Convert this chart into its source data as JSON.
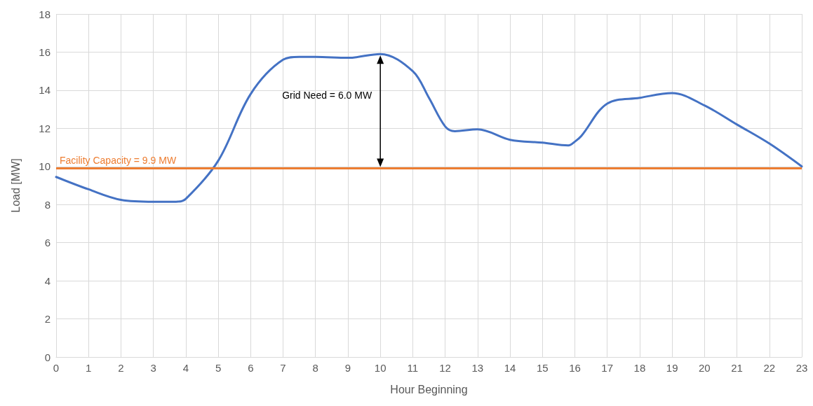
{
  "chart_data": {
    "type": "line",
    "xlabel": "Hour Beginning",
    "ylabel": "Load [MW]",
    "xlim": [
      0,
      23
    ],
    "xticks": [
      0,
      1,
      2,
      3,
      4,
      5,
      6,
      7,
      8,
      9,
      10,
      11,
      12,
      13,
      14,
      15,
      16,
      17,
      18,
      19,
      20,
      21,
      22,
      23
    ],
    "ylim": [
      0,
      18
    ],
    "yticks": [
      0,
      2,
      4,
      6,
      8,
      10,
      12,
      14,
      16,
      18
    ],
    "grid": true,
    "marker": "none",
    "line_style": "solid",
    "series": [
      {
        "color": "#4472c4",
        "x": [
          0,
          1,
          2,
          3,
          3.7,
          4,
          5,
          6,
          7,
          7.5,
          8,
          9,
          10,
          11,
          11.5,
          12,
          12.3,
          13,
          14,
          15,
          15.8,
          16,
          16.2,
          17,
          18,
          19,
          20,
          21,
          22,
          23
        ],
        "values": [
          9.45,
          8.8,
          8.25,
          8.15,
          8.15,
          8.3,
          10.3,
          13.8,
          15.6,
          15.75,
          15.75,
          15.7,
          15.9,
          15.0,
          13.6,
          12.1,
          11.85,
          11.95,
          11.4,
          11.25,
          11.1,
          11.3,
          11.6,
          13.3,
          13.6,
          13.85,
          13.2,
          12.2,
          11.2,
          10.0
        ]
      }
    ],
    "ref_lines": [
      {
        "axis": "y",
        "value": 9.9,
        "label": "Facility Capacity = 9.9 MW",
        "color": "#ed7d31"
      }
    ],
    "annotations": [
      "Grid Need = 6.0 MW"
    ]
  }
}
